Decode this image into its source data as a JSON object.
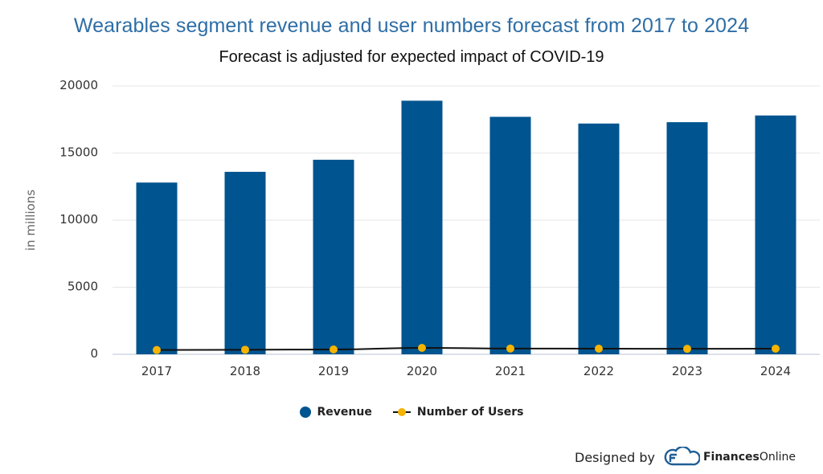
{
  "colors": {
    "revenue": "#00548f",
    "users_line": "#111111",
    "users_marker": "#f5b400",
    "title": "#2e6ea6"
  },
  "credit": {
    "designed_by": "Designed by",
    "brand_bold": "Finances",
    "brand_regular": "Online"
  },
  "chart_data": {
    "type": "bar",
    "title": "Wearables segment revenue and user numbers forecast from 2017 to 2024",
    "subtitle": "Forecast is adjusted for expected impact of COVID-19",
    "ylabel": "in millions",
    "xlabel": "",
    "ylim": [
      0,
      20000
    ],
    "yticks": [
      0,
      5000,
      10000,
      15000,
      20000
    ],
    "grid": true,
    "legend_position": "bottom",
    "categories": [
      "2017",
      "2018",
      "2019",
      "2020",
      "2021",
      "2022",
      "2023",
      "2024"
    ],
    "series": [
      {
        "name": "Revenue",
        "type": "bar",
        "values": [
          12800,
          13600,
          14500,
          18900,
          17700,
          17200,
          17300,
          17800
        ]
      },
      {
        "name": "Number of Users",
        "type": "line",
        "values": [
          320,
          340,
          360,
          480,
          430,
          420,
          410,
          420
        ]
      }
    ]
  }
}
